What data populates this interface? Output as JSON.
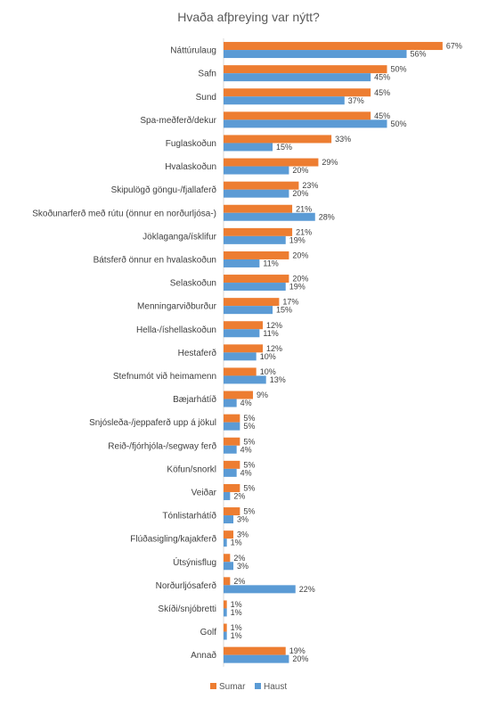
{
  "chart_data": {
    "type": "bar",
    "orientation": "horizontal",
    "title": "Hvaða afþreying var nýtt?",
    "categories": [
      "Náttúrulaug",
      "Safn",
      "Sund",
      "Spa-meðferð/dekur",
      "Fuglaskoðun",
      "Hvalaskoðun",
      "Skipulögð göngu-/fjallaferð",
      "Skoðunarferð með rútu (önnur en norðurljósa-)",
      "Jöklaganga/ísklifur",
      "Bátsferð önnur en hvalaskoðun",
      "Selaskoðun",
      "Menningarviðburður",
      "Hella-/íshellaskoðun",
      "Hestaferð",
      "Stefnumót við heimamenn",
      "Bæjarhátíð",
      "Snjósleða-/jeppaferð upp á jökul",
      "Reið-/fjórhjóla-/segway ferð",
      "Köfun/snorkl",
      "Veiðar",
      "Tónlistarhátíð",
      "Flúðasigling/kajakferð",
      "Útsýnisflug",
      "Norðurljósaferð",
      "Skíði/snjóbretti",
      "Golf",
      "Annað"
    ],
    "series": [
      {
        "name": "Sumar",
        "color": "#ED7D31",
        "values": [
          67,
          50,
          45,
          45,
          33,
          29,
          23,
          21,
          21,
          20,
          20,
          17,
          12,
          12,
          10,
          9,
          5,
          5,
          5,
          5,
          5,
          3,
          2,
          2,
          1,
          1,
          19
        ]
      },
      {
        "name": "Haust",
        "color": "#5B9BD5",
        "values": [
          56,
          45,
          37,
          50,
          15,
          20,
          20,
          28,
          19,
          11,
          19,
          15,
          11,
          10,
          13,
          4,
          5,
          4,
          4,
          2,
          3,
          1,
          3,
          22,
          1,
          1,
          20
        ]
      }
    ],
    "value_suffix": "%",
    "legend_position": "bottom",
    "grid": false,
    "xlim": [
      0,
      70
    ]
  }
}
